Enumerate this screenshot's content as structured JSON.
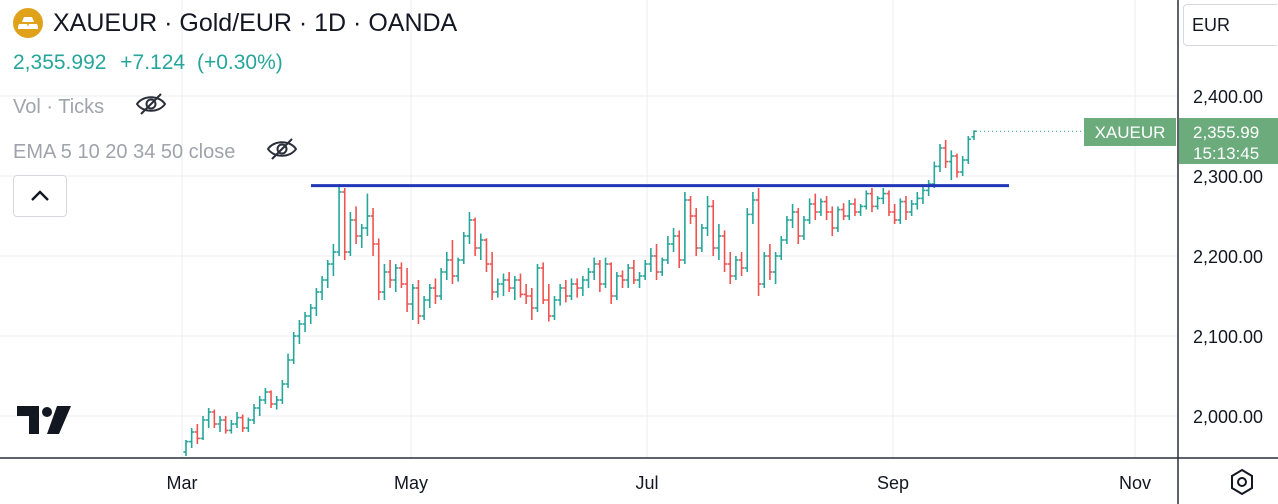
{
  "header": {
    "symbol": "XAUEUR",
    "title": "XAUEUR · Gold/EUR · 1D · OANDA",
    "price": "2,355.992",
    "change": "+7.124",
    "change_pct": "(+0.30%)"
  },
  "indicators": [
    {
      "label": "Vol · Ticks",
      "icon": "eye-hidden-icon"
    },
    {
      "label": "EMA 5 10 20 34 50 close",
      "icon": "eye-hidden-icon"
    }
  ],
  "currency": "EUR",
  "price_label": {
    "name": "XAUEUR",
    "value": "2,355.99",
    "countdown": "15:13:45"
  },
  "colors": {
    "up": "#26a69a",
    "down": "#ef5350",
    "trendline": "#2236b8",
    "label_bg": "#6bab7c",
    "logo": "#e0a21b"
  },
  "chart_data": {
    "type": "ohlc",
    "interval": "1D",
    "x_ticks": [
      "Mar",
      "May",
      "Jul",
      "Sep",
      "Nov"
    ],
    "y_ticks": [
      "2,000.00",
      "2,100.00",
      "2,200.00",
      "2,300.00",
      "2,400.00"
    ],
    "ylim": [
      1945,
      2450
    ],
    "trendline": {
      "value": 2288
    },
    "last_price": 2355.99,
    "bars": [
      [
        1955,
        1970,
        1950,
        1968
      ],
      [
        1968,
        1985,
        1960,
        1980
      ],
      [
        1980,
        1990,
        1965,
        1972
      ],
      [
        1972,
        2000,
        1970,
        1995
      ],
      [
        1995,
        2010,
        1985,
        2005
      ],
      [
        2005,
        2008,
        1985,
        1990
      ],
      [
        1990,
        2000,
        1980,
        1995
      ],
      [
        1995,
        2000,
        1978,
        1982
      ],
      [
        1982,
        1995,
        1978,
        1990
      ],
      [
        1990,
        2005,
        1985,
        1998
      ],
      [
        1998,
        2002,
        1980,
        1985
      ],
      [
        1985,
        1998,
        1980,
        1995
      ],
      [
        1995,
        2015,
        1990,
        2010
      ],
      [
        2010,
        2025,
        2000,
        2020
      ],
      [
        2020,
        2035,
        2015,
        2030
      ],
      [
        2030,
        2032,
        2010,
        2015
      ],
      [
        2015,
        2025,
        2008,
        2020
      ],
      [
        2020,
        2045,
        2015,
        2040
      ],
      [
        2040,
        2078,
        2035,
        2070
      ],
      [
        2070,
        2105,
        2065,
        2100
      ],
      [
        2100,
        2120,
        2090,
        2115
      ],
      [
        2115,
        2130,
        2105,
        2125
      ],
      [
        2125,
        2140,
        2115,
        2135
      ],
      [
        2135,
        2160,
        2125,
        2155
      ],
      [
        2155,
        2175,
        2145,
        2170
      ],
      [
        2170,
        2195,
        2160,
        2190
      ],
      [
        2190,
        2215,
        2175,
        2205
      ],
      [
        2205,
        2290,
        2200,
        2280
      ],
      [
        2280,
        2285,
        2195,
        2205
      ],
      [
        2205,
        2255,
        2200,
        2245
      ],
      [
        2245,
        2262,
        2215,
        2225
      ],
      [
        2225,
        2240,
        2210,
        2235
      ],
      [
        2235,
        2278,
        2225,
        2250
      ],
      [
        2250,
        2260,
        2200,
        2215
      ],
      [
        2215,
        2222,
        2145,
        2155
      ],
      [
        2155,
        2190,
        2145,
        2180
      ],
      [
        2180,
        2195,
        2160,
        2170
      ],
      [
        2170,
        2190,
        2155,
        2185
      ],
      [
        2185,
        2192,
        2160,
        2165
      ],
      [
        2165,
        2185,
        2130,
        2140
      ],
      [
        2140,
        2165,
        2120,
        2160
      ],
      [
        2160,
        2170,
        2115,
        2125
      ],
      [
        2125,
        2150,
        2120,
        2145
      ],
      [
        2145,
        2165,
        2135,
        2160
      ],
      [
        2160,
        2172,
        2140,
        2150
      ],
      [
        2150,
        2185,
        2145,
        2180
      ],
      [
        2180,
        2205,
        2170,
        2195
      ],
      [
        2195,
        2220,
        2165,
        2175
      ],
      [
        2175,
        2198,
        2168,
        2195
      ],
      [
        2195,
        2230,
        2190,
        2225
      ],
      [
        2225,
        2255,
        2215,
        2245
      ],
      [
        2245,
        2248,
        2200,
        2210
      ],
      [
        2210,
        2228,
        2195,
        2220
      ],
      [
        2220,
        2222,
        2180,
        2190
      ],
      [
        2190,
        2205,
        2145,
        2155
      ],
      [
        2155,
        2172,
        2148,
        2165
      ],
      [
        2165,
        2178,
        2150,
        2170
      ],
      [
        2170,
        2180,
        2155,
        2160
      ],
      [
        2160,
        2175,
        2145,
        2170
      ],
      [
        2170,
        2178,
        2148,
        2152
      ],
      [
        2152,
        2165,
        2140,
        2150
      ],
      [
        2150,
        2160,
        2120,
        2135
      ],
      [
        2135,
        2190,
        2130,
        2185
      ],
      [
        2185,
        2192,
        2140,
        2145
      ],
      [
        2145,
        2165,
        2118,
        2125
      ],
      [
        2125,
        2150,
        2120,
        2145
      ],
      [
        2145,
        2165,
        2138,
        2160
      ],
      [
        2160,
        2170,
        2142,
        2150
      ],
      [
        2150,
        2172,
        2145,
        2165
      ],
      [
        2165,
        2172,
        2148,
        2160
      ],
      [
        2160,
        2175,
        2150,
        2170
      ],
      [
        2170,
        2185,
        2160,
        2180
      ],
      [
        2180,
        2198,
        2170,
        2190
      ],
      [
        2190,
        2195,
        2155,
        2165
      ],
      [
        2165,
        2198,
        2160,
        2190
      ],
      [
        2190,
        2192,
        2140,
        2150
      ],
      [
        2150,
        2180,
        2145,
        2175
      ],
      [
        2175,
        2182,
        2160,
        2170
      ],
      [
        2170,
        2190,
        2160,
        2185
      ],
      [
        2185,
        2195,
        2165,
        2170
      ],
      [
        2170,
        2180,
        2160,
        2175
      ],
      [
        2175,
        2195,
        2170,
        2190
      ],
      [
        2190,
        2210,
        2180,
        2200
      ],
      [
        2200,
        2215,
        2170,
        2180
      ],
      [
        2180,
        2198,
        2175,
        2195
      ],
      [
        2195,
        2225,
        2190,
        2215
      ],
      [
        2215,
        2235,
        2205,
        2225
      ],
      [
        2225,
        2232,
        2185,
        2195
      ],
      [
        2195,
        2280,
        2190,
        2270
      ],
      [
        2270,
        2275,
        2240,
        2250
      ],
      [
        2250,
        2260,
        2200,
        2210
      ],
      [
        2210,
        2240,
        2205,
        2235
      ],
      [
        2235,
        2275,
        2225,
        2262
      ],
      [
        2262,
        2270,
        2200,
        2210
      ],
      [
        2210,
        2240,
        2195,
        2225
      ],
      [
        2225,
        2232,
        2180,
        2190
      ],
      [
        2190,
        2205,
        2165,
        2175
      ],
      [
        2175,
        2200,
        2170,
        2195
      ],
      [
        2195,
        2205,
        2175,
        2185
      ],
      [
        2185,
        2260,
        2180,
        2252
      ],
      [
        2252,
        2280,
        2240,
        2270
      ],
      [
        2270,
        2285,
        2150,
        2165
      ],
      [
        2165,
        2205,
        2160,
        2200
      ],
      [
        2200,
        2215,
        2170,
        2180
      ],
      [
        2180,
        2205,
        2165,
        2200
      ],
      [
        2200,
        2225,
        2195,
        2220
      ],
      [
        2220,
        2250,
        2215,
        2245
      ],
      [
        2245,
        2265,
        2235,
        2255
      ],
      [
        2255,
        2260,
        2215,
        2225
      ],
      [
        2225,
        2250,
        2220,
        2245
      ],
      [
        2245,
        2272,
        2240,
        2265
      ],
      [
        2265,
        2278,
        2245,
        2255
      ],
      [
        2255,
        2272,
        2250,
        2268
      ],
      [
        2268,
        2275,
        2245,
        2255
      ],
      [
        2255,
        2262,
        2225,
        2235
      ],
      [
        2235,
        2262,
        2230,
        2258
      ],
      [
        2258,
        2266,
        2245,
        2250
      ],
      [
        2250,
        2270,
        2245,
        2265
      ],
      [
        2265,
        2272,
        2250,
        2255
      ],
      [
        2255,
        2265,
        2250,
        2262
      ],
      [
        2262,
        2282,
        2258,
        2278
      ],
      [
        2278,
        2285,
        2255,
        2262
      ],
      [
        2262,
        2275,
        2258,
        2272
      ],
      [
        2272,
        2285,
        2265,
        2278
      ],
      [
        2278,
        2282,
        2250,
        2255
      ],
      [
        2255,
        2265,
        2240,
        2245
      ],
      [
        2245,
        2272,
        2240,
        2268
      ],
      [
        2268,
        2275,
        2245,
        2255
      ],
      [
        2255,
        2270,
        2250,
        2265
      ],
      [
        2265,
        2280,
        2258,
        2272
      ],
      [
        2272,
        2288,
        2265,
        2282
      ],
      [
        2282,
        2295,
        2275,
        2290
      ],
      [
        2290,
        2318,
        2285,
        2312
      ],
      [
        2312,
        2340,
        2305,
        2335
      ],
      [
        2335,
        2345,
        2310,
        2318
      ],
      [
        2318,
        2332,
        2295,
        2325
      ],
      [
        2325,
        2328,
        2298,
        2305
      ],
      [
        2305,
        2325,
        2300,
        2320
      ],
      [
        2320,
        2350,
        2315,
        2346
      ],
      [
        2349,
        2357,
        2345,
        2356
      ]
    ]
  }
}
